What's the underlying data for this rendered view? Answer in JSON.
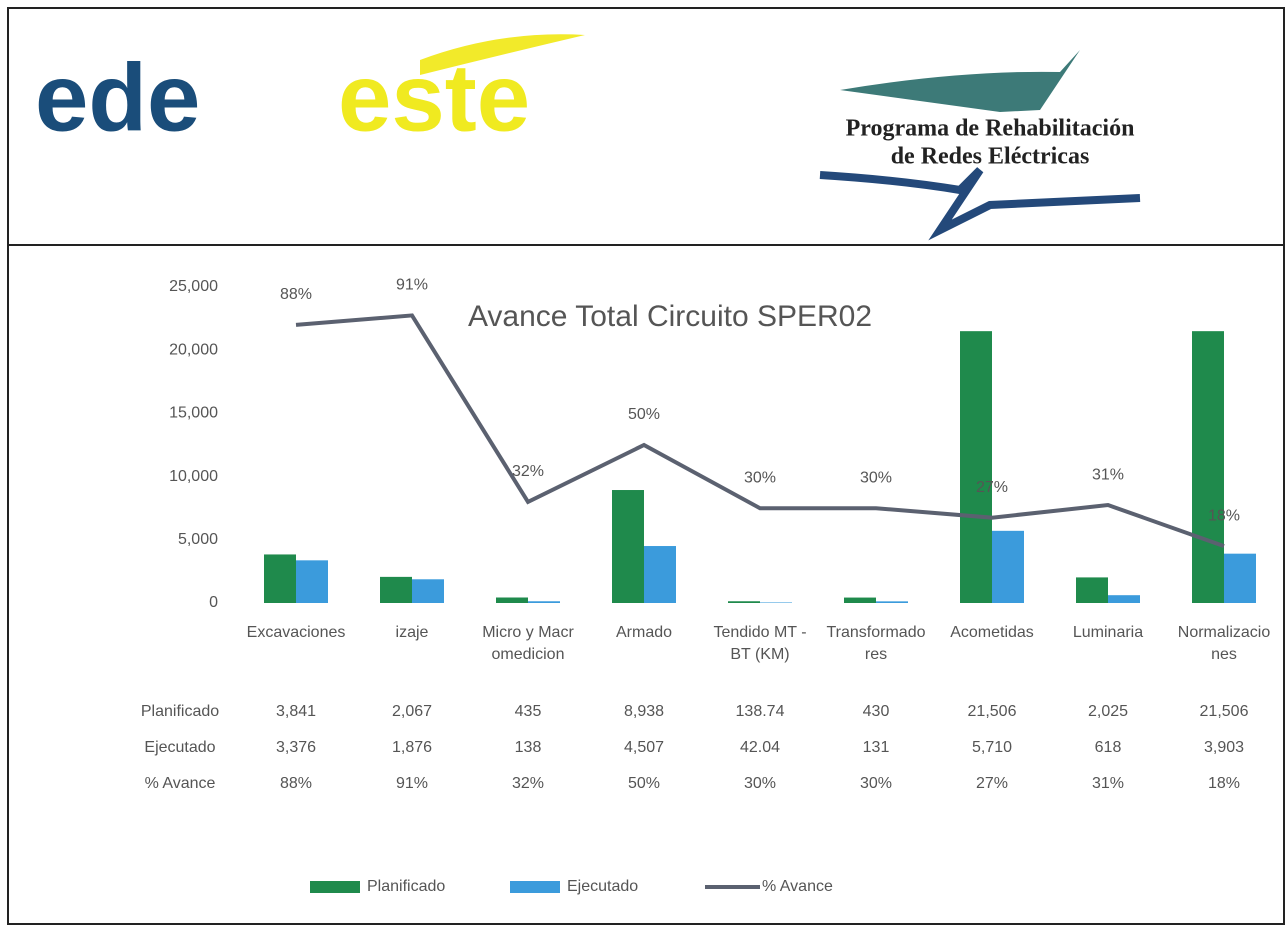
{
  "header": {
    "logo_left": [
      "ede",
      "este"
    ],
    "logo_right": [
      "Programa de Rehabilitación",
      "de Redes Eléctricas"
    ]
  },
  "chart_data": {
    "type": "bar",
    "title": "Avance Total Circuito SPER02",
    "categories": [
      "Excavaciones",
      "izaje",
      "Micro y Macromedicion",
      "Armado",
      "Tendido MT - BT (KM)",
      "Transformadores",
      "Acometidas",
      "Luminaria",
      "Normalizaciones"
    ],
    "series": [
      {
        "name": "Planificado",
        "type": "bar",
        "color": "#1f8a4c",
        "values": [
          3841,
          2067,
          435,
          8938,
          138.74,
          430,
          21506,
          2025,
          21506
        ],
        "value_labels": [
          "3,841",
          "2,067",
          "435",
          "8,938",
          "138.74",
          "430",
          "21,506",
          "2,025",
          "21,506"
        ]
      },
      {
        "name": "Ejecutado",
        "type": "bar",
        "color": "#3b9bdc",
        "values": [
          3376,
          1876,
          138,
          4507,
          42.04,
          131,
          5710,
          618,
          3903
        ],
        "value_labels": [
          "3,376",
          "1,876",
          "138",
          "4,507",
          "42.04",
          "131",
          "5,710",
          "618",
          "3,903"
        ]
      },
      {
        "name": "% Avance",
        "type": "line",
        "axis": "y2",
        "color": "#5b6170",
        "values": [
          88,
          91,
          32,
          50,
          30,
          30,
          27,
          31,
          18
        ],
        "value_labels": [
          "88%",
          "91%",
          "32%",
          "50%",
          "30%",
          "30%",
          "27%",
          "31%",
          "18%"
        ]
      }
    ],
    "ylim": [
      0,
      25000
    ],
    "yticks": [
      0,
      {
        "value": 5000,
        "label": "5,000"
      },
      {
        "value": 10000,
        "label": "10,000"
      },
      {
        "value": 15000,
        "label": "15,000"
      },
      {
        "value": 20000,
        "label": "20,000"
      },
      {
        "value": 25000,
        "label": "25,000"
      }
    ],
    "y2lim": [
      0,
      100
    ],
    "legend": "bottom"
  }
}
